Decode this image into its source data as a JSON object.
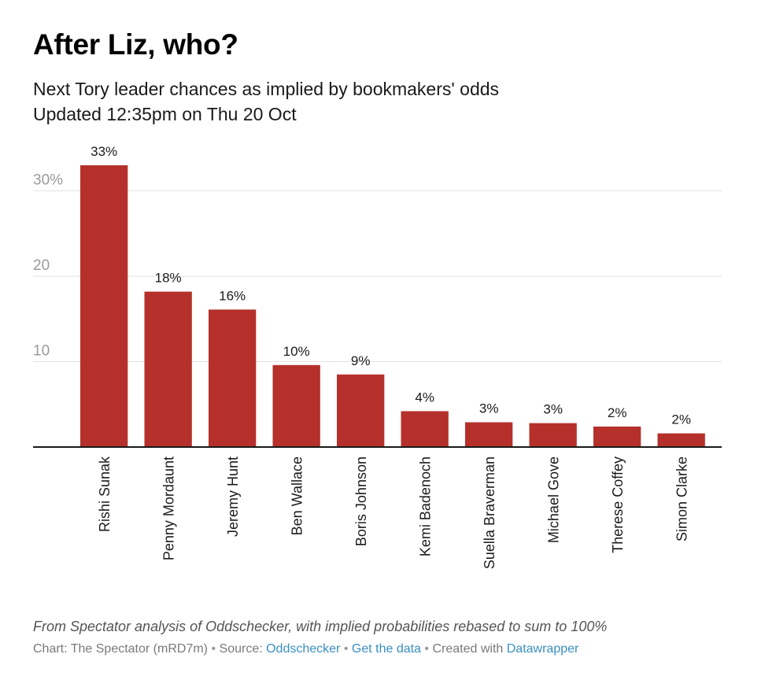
{
  "header": {
    "title": "After Liz, who?",
    "subtitle_line1": "Next Tory leader chances as implied by bookmakers' odds",
    "subtitle_line2": "Updated 12:35pm on Thu 20 Oct"
  },
  "chart_data": {
    "type": "bar",
    "categories": [
      "Rishi Sunak",
      "Penny Mordaunt",
      "Jeremy Hunt",
      "Ben Wallace",
      "Boris Johnson",
      "Kemi Badenoch",
      "Suella Braverman",
      "Michael Gove",
      "Therese Coffey",
      "Simon Clarke"
    ],
    "values": [
      33,
      18,
      16,
      10,
      9,
      4,
      3,
      3,
      2,
      2
    ],
    "plotted_values": [
      33,
      18.2,
      16.1,
      9.6,
      8.5,
      4.2,
      2.9,
      2.8,
      2.4,
      1.6
    ],
    "value_labels": [
      "33%",
      "18%",
      "16%",
      "10%",
      "9%",
      "4%",
      "3%",
      "3%",
      "2%",
      "2%"
    ],
    "y_ticks": [
      {
        "value": 10,
        "label": "10"
      },
      {
        "value": 20,
        "label": "20"
      },
      {
        "value": 30,
        "label": "30%"
      }
    ],
    "ylim": [
      0,
      33
    ],
    "bar_color": "#b5302a",
    "grid": true,
    "xlabel": "",
    "ylabel": ""
  },
  "footer": {
    "note": "From Spectator analysis of Oddschecker, with implied probabilities rebased to sum to 100%",
    "credit_prefix": "Chart: The Spectator (mRD7m)",
    "bullet": "•",
    "source_label": "Source:",
    "source_link": "Oddschecker",
    "data_link": "Get the data",
    "created_label": "Created with",
    "created_link": "Datawrapper"
  }
}
